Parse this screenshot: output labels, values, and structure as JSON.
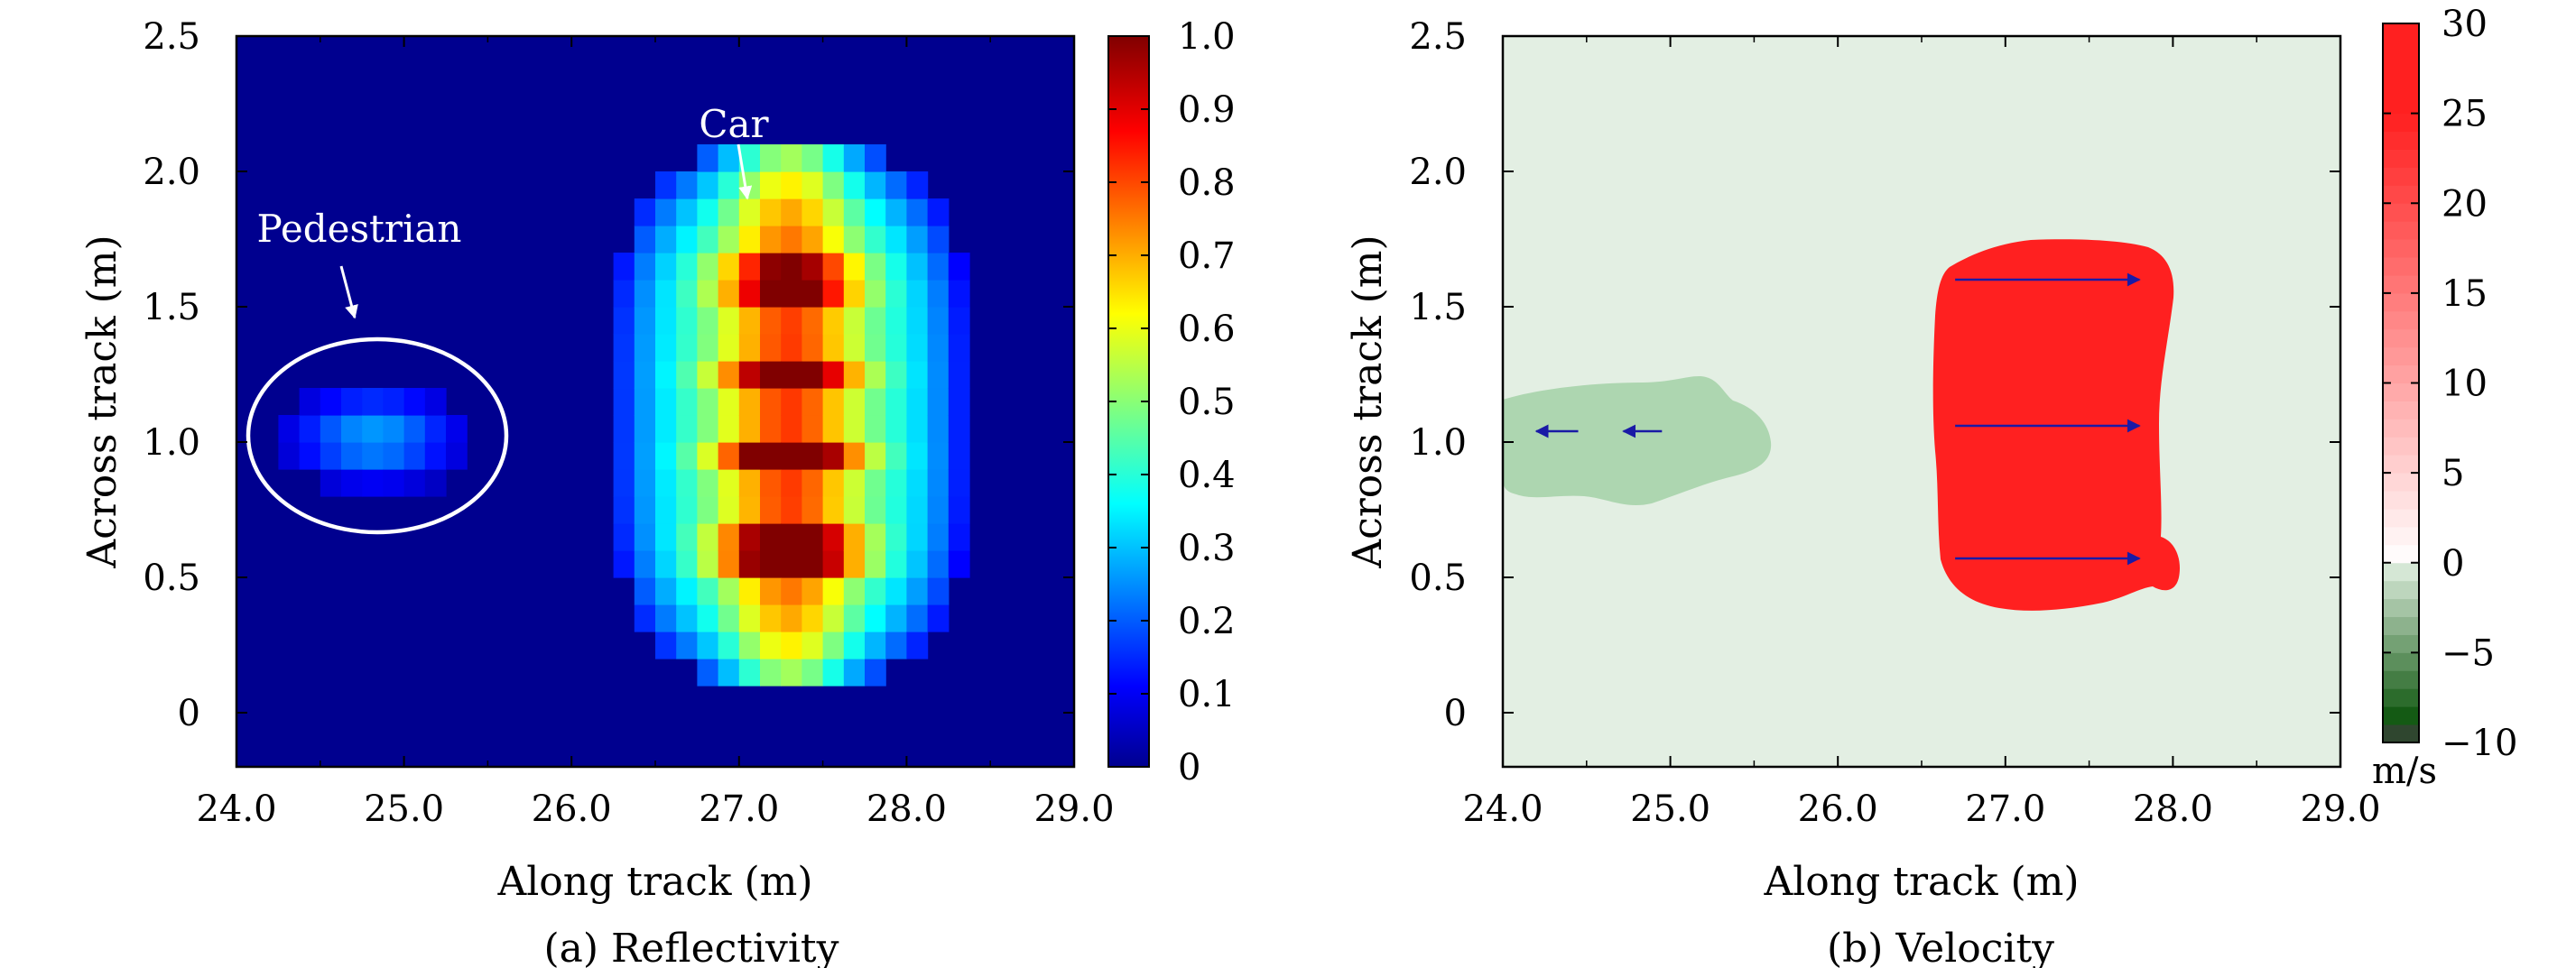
{
  "chart_data": [
    {
      "type": "heatmap",
      "caption": "(a) Reflectivity",
      "xlabel": "Along track (m)",
      "ylabel": "Across track (m)",
      "xlim": [
        24.0,
        29.0
      ],
      "ylim": [
        -0.2,
        2.5
      ],
      "x_ticks": [
        "24.0",
        "25.0",
        "26.0",
        "27.0",
        "28.0",
        "29.0"
      ],
      "y_ticks": [
        "0",
        "0.5",
        "1.0",
        "1.5",
        "2.0",
        "2.5"
      ],
      "colorbar": {
        "colormap": "jet",
        "range": [
          0,
          1.0
        ],
        "ticks": [
          "0",
          "0.1",
          "0.2",
          "0.3",
          "0.4",
          "0.5",
          "0.6",
          "0.7",
          "0.8",
          "0.9",
          "1.0"
        ]
      },
      "annotations": [
        {
          "text": "Pedestrian",
          "target_x": 24.85,
          "target_y": 1.0
        },
        {
          "text": "Car",
          "target_x": 27.3,
          "target_y": 1.1
        }
      ],
      "objects": [
        {
          "name": "pedestrian",
          "x_range": [
            24.3,
            25.3
          ],
          "y_range": [
            0.9,
            1.15
          ],
          "peak": 0.28
        },
        {
          "name": "car",
          "x_range": [
            26.6,
            28.0
          ],
          "y_range": [
            0.35,
            1.85
          ],
          "peak": 1.0
        }
      ]
    },
    {
      "type": "heatmap",
      "caption": "(b) Velocity",
      "xlabel": "Along track (m)",
      "ylabel": "Across track (m)",
      "xlim": [
        24.0,
        29.0
      ],
      "ylim": [
        -0.2,
        2.5
      ],
      "x_ticks": [
        "24.0",
        "25.0",
        "26.0",
        "27.0",
        "28.0",
        "29.0"
      ],
      "y_ticks": [
        "0",
        "0.5",
        "1.0",
        "1.5",
        "2.0",
        "2.5"
      ],
      "colorbar": {
        "colormap": "red-white-green",
        "range": [
          -10,
          30
        ],
        "ticks": [
          "−10",
          "−5",
          "0",
          "5",
          "10",
          "15",
          "20",
          "25",
          "30"
        ],
        "unit": "m/s"
      },
      "background_velocity": 0,
      "regions": [
        {
          "name": "pedestrian",
          "velocity": -1.5,
          "x_range": [
            24.0,
            25.55
          ],
          "y_range": [
            0.78,
            1.24
          ],
          "color": "#add6b0"
        },
        {
          "name": "car",
          "velocity": 30,
          "x_range": [
            26.55,
            28.0
          ],
          "y_range": [
            0.38,
            1.74
          ],
          "color": "#ff2020"
        }
      ],
      "arrows": [
        {
          "from": [
            24.45,
            1.04
          ],
          "to": [
            24.2,
            1.04
          ]
        },
        {
          "from": [
            24.95,
            1.04
          ],
          "to": [
            24.72,
            1.04
          ]
        },
        {
          "from": [
            26.7,
            1.6
          ],
          "to": [
            27.8,
            1.6
          ]
        },
        {
          "from": [
            26.7,
            1.06
          ],
          "to": [
            27.8,
            1.06
          ]
        },
        {
          "from": [
            26.7,
            0.57
          ],
          "to": [
            27.8,
            0.57
          ]
        }
      ],
      "arrow_color": "#1a1aa6",
      "background_color": "#e3efe3"
    }
  ]
}
